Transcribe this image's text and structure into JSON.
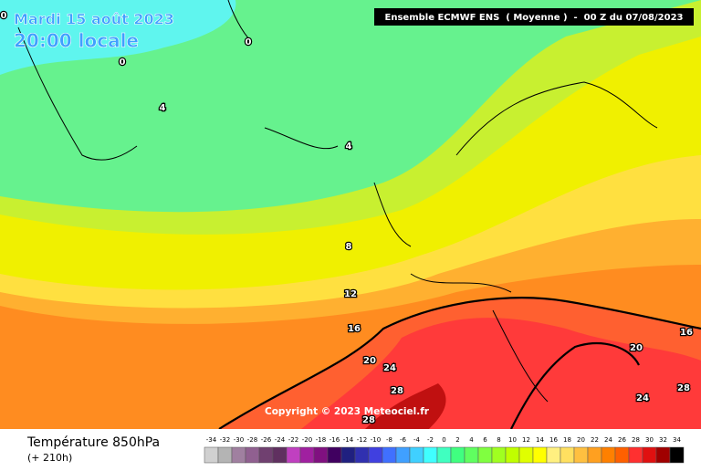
{
  "header": {
    "date": "Mardi 15 août 2023",
    "time": "20:00 locale",
    "model": "Ensemble ECMWF ENS  ( Moyenne )  -  00 Z du 07/08/2023"
  },
  "contour_labels": [
    "0",
    "0",
    "0",
    "4",
    "4",
    "8",
    "12",
    "16",
    "20",
    "24",
    "28",
    "28",
    "16",
    "20",
    "24",
    "28"
  ],
  "copyright": "Copyright © 2023 Meteociel.fr",
  "footer": {
    "title": "Température 850hPa",
    "lead": "(+ 210h)"
  },
  "scale": {
    "labels": [
      -34,
      -32,
      -30,
      -28,
      -26,
      -24,
      -22,
      -20,
      -18,
      -16,
      -14,
      -12,
      -10,
      -8,
      -6,
      -4,
      -2,
      0,
      2,
      4,
      6,
      8,
      10,
      12,
      14,
      16,
      18,
      20,
      22,
      24,
      26,
      28,
      30,
      32,
      34
    ],
    "colors": [
      "#d0d0d0",
      "#b4b4b4",
      "#a080a0",
      "#906090",
      "#704070",
      "#603060",
      "#c040c0",
      "#a020a0",
      "#801080",
      "#400060",
      "#202080",
      "#3030b0",
      "#4040e0",
      "#4070ff",
      "#40a0ff",
      "#40d0ff",
      "#40ffff",
      "#40ffc0",
      "#40ff80",
      "#60ff60",
      "#80ff40",
      "#a0ff20",
      "#c0ff00",
      "#e0ff00",
      "#ffff00",
      "#fff080",
      "#ffe060",
      "#ffc040",
      "#ffa020",
      "#ff8000",
      "#ff6000",
      "#ff3030",
      "#e01010",
      "#a00000",
      "#000000"
    ]
  }
}
